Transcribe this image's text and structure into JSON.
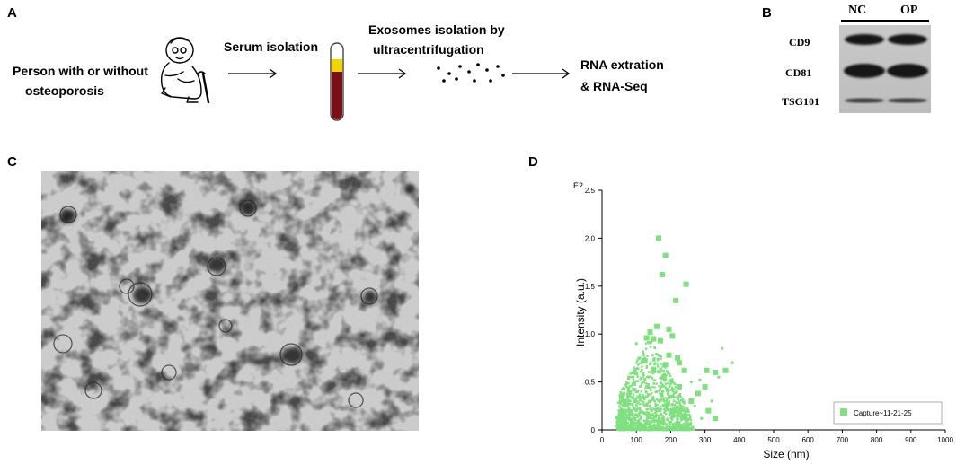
{
  "panelA": {
    "letter": "A",
    "person_line1": "Person with or without",
    "person_line2": "osteoporosis",
    "step1": "Serum isolation",
    "step2_line1": "Exosomes isolation by",
    "step2_line2": "ultracentrifugation",
    "step3_line1": "RNA extration",
    "step3_line2": "& RNA-Seq",
    "icons": [
      "elderly-person-with-cane-icon",
      "blood-tube-icon",
      "exosome-dots-icon"
    ],
    "colors": {
      "serum": "#f2d500",
      "blood": "#7a0f16"
    }
  },
  "panelB": {
    "letter": "B",
    "lanes": [
      "NC",
      "OP"
    ],
    "markers": [
      "CD9",
      "CD81",
      "TSG101"
    ]
  },
  "panelC": {
    "letter": "C",
    "image": "tem-exosome-micrograph"
  },
  "panelD": {
    "letter": "D",
    "chart_data": {
      "type": "scatter",
      "xlabel": "Size (nm)",
      "ylabel": "Intensity (a.u.)",
      "y_multiplier_label": "E2",
      "xlim": [
        0,
        1000
      ],
      "ylim": [
        0,
        2.5
      ],
      "xticks": [
        "0",
        "100",
        "200",
        "300",
        "400",
        "500",
        "600",
        "700",
        "800",
        "900",
        "1000"
      ],
      "yticks": [
        "0",
        "0.5",
        "1.0",
        "1.5",
        "2.0",
        "2.5"
      ],
      "legend_position": "bottom-right",
      "series": [
        {
          "name": "Capture~11-21-25",
          "color": "#7ee07e",
          "large_points": [
            [
              165,
              2.0
            ],
            [
              185,
              1.82
            ],
            [
              175,
              1.62
            ],
            [
              245,
              1.52
            ],
            [
              215,
              1.35
            ],
            [
              160,
              1.08
            ],
            [
              195,
              1.05
            ],
            [
              140,
              1.02
            ],
            [
              205,
              0.98
            ],
            [
              130,
              0.96
            ],
            [
              150,
              0.95
            ],
            [
              170,
              0.93
            ],
            [
              195,
              0.78
            ],
            [
              220,
              0.75
            ],
            [
              225,
              0.7
            ],
            [
              185,
              0.68
            ],
            [
              240,
              0.62
            ],
            [
              150,
              0.63
            ],
            [
              330,
              0.6
            ],
            [
              305,
              0.62
            ],
            [
              360,
              0.62
            ],
            [
              300,
              0.45
            ],
            [
              280,
              0.38
            ],
            [
              225,
              0.45
            ],
            [
              125,
              0.72
            ],
            [
              180,
              0.55
            ],
            [
              260,
              0.3
            ],
            [
              310,
              0.2
            ],
            [
              210,
              0.2
            ],
            [
              330,
              0.12
            ]
          ],
          "small_points": [
            [
              350,
              0.85
            ],
            [
              380,
              0.7
            ],
            [
              340,
              0.55
            ],
            [
              260,
              0.5
            ],
            [
              270,
              0.25
            ],
            [
              320,
              0.3
            ],
            [
              290,
              0.12
            ],
            [
              100,
              0.9
            ],
            [
              110,
              0.75
            ],
            [
              90,
              0.55
            ],
            [
              80,
              0.4
            ],
            [
              70,
              0.25
            ],
            [
              60,
              0.12
            ],
            [
              50,
              0.05
            ],
            [
              45,
              0.02
            ],
            [
              230,
              0.05
            ],
            [
              250,
              0.1
            ],
            [
              200,
              0.35
            ],
            [
              120,
              0.5
            ],
            [
              140,
              0.3
            ],
            [
              160,
              0.4
            ],
            [
              180,
              0.25
            ],
            [
              100,
              0.2
            ],
            [
              130,
              0.15
            ],
            [
              155,
              0.1
            ],
            [
              85,
              0.08
            ],
            [
              240,
              0.2
            ],
            [
              285,
              0.52
            ]
          ]
        }
      ]
    }
  }
}
